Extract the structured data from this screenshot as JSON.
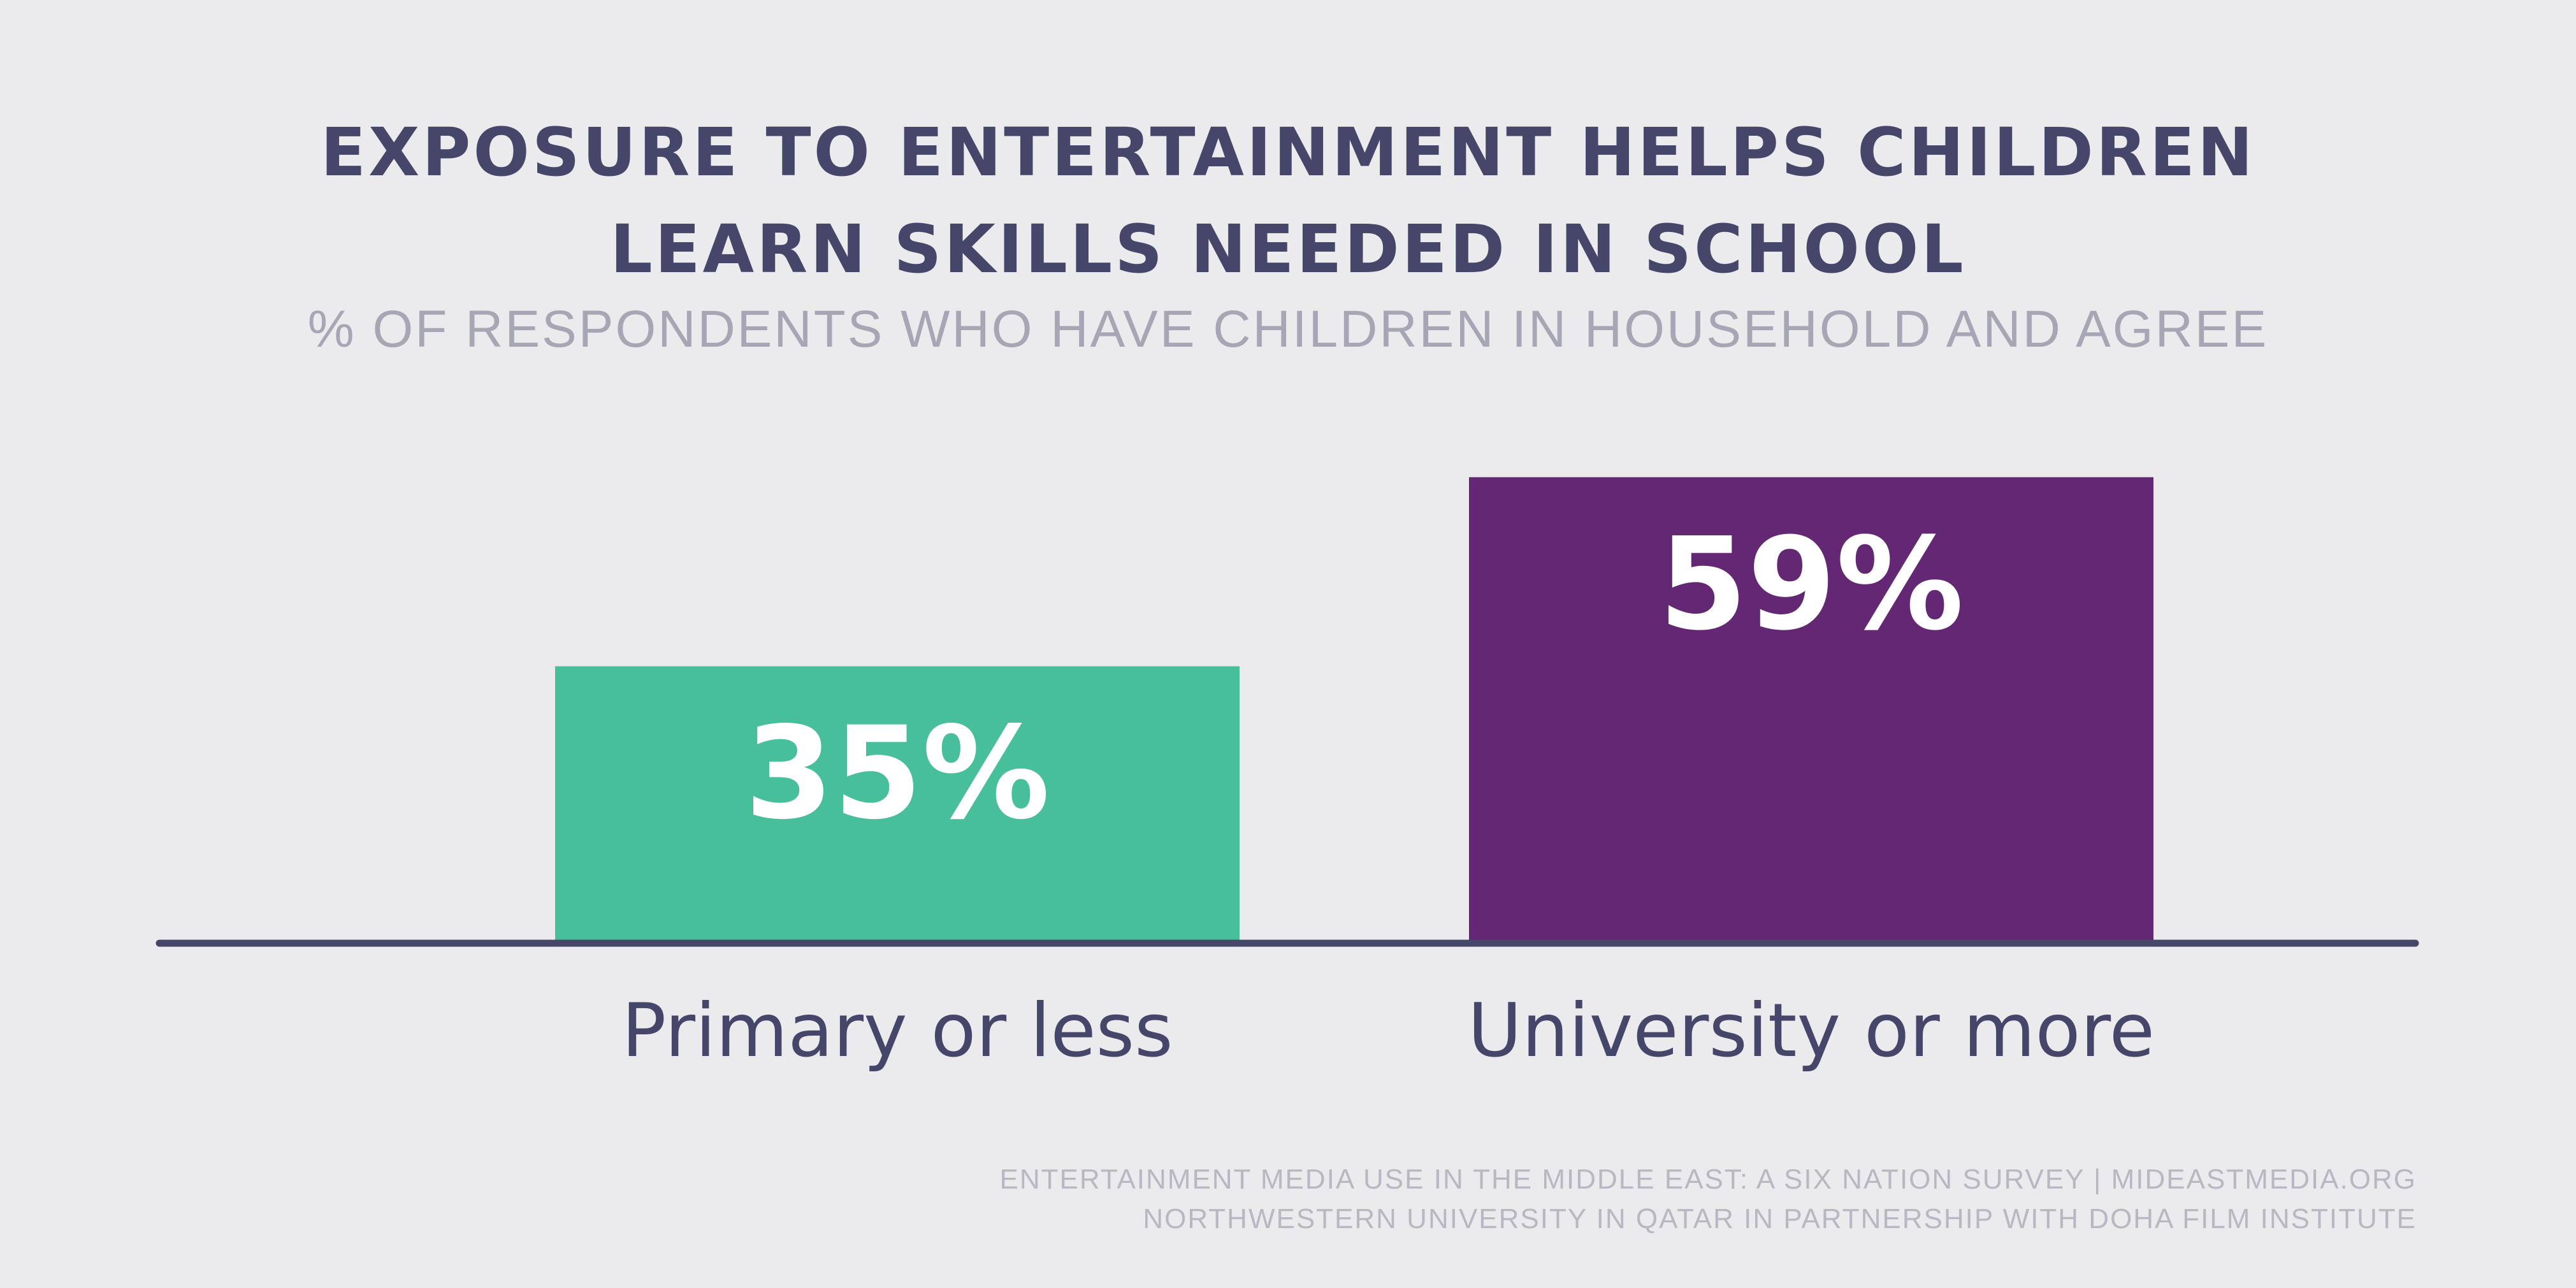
{
  "colors": {
    "background": "#ebeaed",
    "title": "#45466a",
    "subtitle": "#a6a6b4",
    "axis": "#45466a",
    "bar_primary": "#48bf9b",
    "bar_university": "#642773",
    "value_label": "#ffffff",
    "source": "#b8b8c2"
  },
  "chart_data": {
    "type": "bar",
    "title_lines": [
      "EXPOSURE TO ENTERTAINMENT HELPS CHILDREN",
      "LEARN SKILLS NEEDED IN SCHOOL"
    ],
    "subtitle": "% OF RESPONDENTS WHO HAVE CHILDREN IN HOUSEHOLD AND AGREE",
    "categories": [
      "Primary or less",
      "University or more"
    ],
    "values": [
      35,
      59
    ],
    "value_labels": [
      "35%",
      "59%"
    ],
    "ylim": [
      0,
      100
    ],
    "grid": false,
    "legend": "none"
  },
  "source": {
    "line1": "ENTERTAINMENT MEDIA USE IN THE MIDDLE EAST: A SIX NATION SURVEY | MIDEASTMEDIA.ORG",
    "line2": "NORTHWESTERN UNIVERSITY IN QATAR IN PARTNERSHIP WITH DOHA FILM INSTITUTE"
  }
}
